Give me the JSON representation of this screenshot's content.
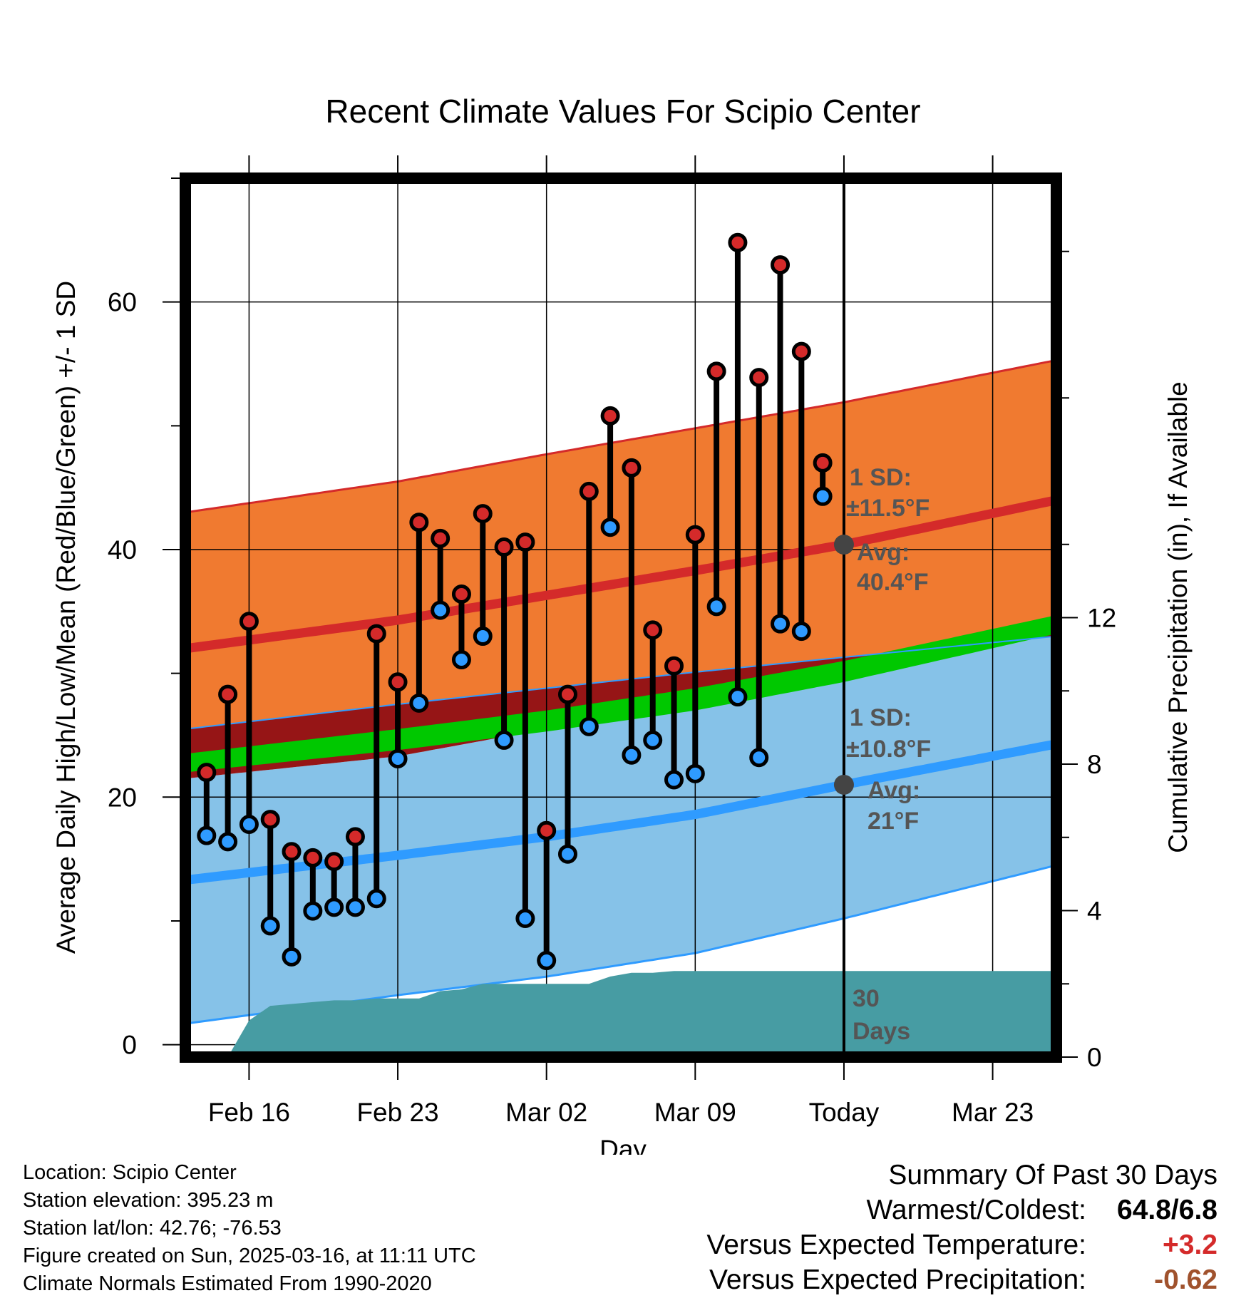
{
  "colors": {
    "high": "#d42a2a",
    "low": "#2f9bff",
    "band_upper": "#f07a30",
    "band_lower": "#86c2e8",
    "band_overlap": "#961516",
    "mean_band": "#00c800",
    "precip": "#479ca3",
    "annotation": "#555555",
    "warm_delta": "#d42a2a",
    "precip_delta": "#a0522d"
  },
  "chart_data": {
    "type": "line",
    "title": "Recent Climate Values For Scipio Center",
    "xlabel": "Day",
    "ylabel": "Average Daily High/Low/Mean (Red/Blue/Green) +/- 1 SD",
    "ylabel_right": "Cumulative Precipitation (in), If Available",
    "ylim": [
      -1,
      70
    ],
    "ylim_right": [
      0,
      24
    ],
    "xlim": [
      "2025-02-13",
      "2025-03-26"
    ],
    "x_ticks": [
      {
        "date": "2025-02-16",
        "label": "Feb 16"
      },
      {
        "date": "2025-02-23",
        "label": "Feb 23"
      },
      {
        "date": "2025-03-02",
        "label": "Mar 02"
      },
      {
        "date": "2025-03-09",
        "label": "Mar 09"
      },
      {
        "date": "2025-03-16",
        "label": "Today"
      },
      {
        "date": "2025-03-23",
        "label": "Mar 23"
      }
    ],
    "y_ticks": [
      "0",
      "20",
      "40",
      "60"
    ],
    "y_ticks_right": [
      "0",
      "4",
      "8",
      "12"
    ],
    "grid": true,
    "today": "2025-03-16",
    "days_label": [
      "30",
      "Days"
    ],
    "normals": {
      "x": [
        "2025-02-13",
        "2025-02-23",
        "2025-03-02",
        "2025-03-09",
        "2025-03-16",
        "2025-03-26"
      ],
      "high_mean": [
        32.0,
        34.3,
        36.3,
        38.3,
        40.4,
        44.0
      ],
      "high_upper": [
        43.0,
        45.5,
        47.7,
        49.8,
        51.9,
        55.3
      ],
      "high_lower": [
        25.5,
        27.5,
        28.8,
        30.1,
        31.3,
        33.0
      ],
      "low_mean": [
        13.3,
        15.3,
        16.8,
        18.6,
        21.0,
        24.3
      ],
      "low_upper": [
        21.5,
        23.3,
        25.5,
        27.7,
        29.8,
        33.3
      ],
      "low_lower": [
        1.7,
        4.0,
        5.5,
        7.4,
        10.2,
        14.5
      ],
      "avg_mean_upper": [
        23.5,
        25.5,
        27.0,
        28.8,
        31.0,
        34.7
      ],
      "avg_mean_lower": [
        22.0,
        23.8,
        25.3,
        27.0,
        29.3,
        33.2
      ]
    },
    "high_sd": {
      "label": "1 SD:",
      "value": "±11.5°F",
      "avg_label": "Avg:",
      "avg_value": "40.4°F",
      "avg": 40.4
    },
    "low_sd": {
      "label": "1 SD:",
      "value": "±10.8°F",
      "avg_label": "Avg:",
      "avg_value": "21°F",
      "avg": 21
    },
    "observations": {
      "x": [
        "2025-02-14",
        "2025-02-15",
        "2025-02-16",
        "2025-02-17",
        "2025-02-18",
        "2025-02-19",
        "2025-02-20",
        "2025-02-21",
        "2025-02-22",
        "2025-02-23",
        "2025-02-24",
        "2025-02-25",
        "2025-02-26",
        "2025-02-27",
        "2025-02-28",
        "2025-03-01",
        "2025-03-02",
        "2025-03-03",
        "2025-03-04",
        "2025-03-05",
        "2025-03-06",
        "2025-03-07",
        "2025-03-08",
        "2025-03-09",
        "2025-03-10",
        "2025-03-11",
        "2025-03-12",
        "2025-03-13",
        "2025-03-14",
        "2025-03-15"
      ],
      "high": [
        22.0,
        28.3,
        34.2,
        18.2,
        15.6,
        15.1,
        14.8,
        16.8,
        33.2,
        29.3,
        42.2,
        40.9,
        36.4,
        42.9,
        40.2,
        40.6,
        17.3,
        28.3,
        44.7,
        50.8,
        46.6,
        33.5,
        30.6,
        41.2,
        54.4,
        64.8,
        53.9,
        63.0,
        56.0,
        47.0
      ],
      "low": [
        16.9,
        16.4,
        17.8,
        9.6,
        7.1,
        10.8,
        11.1,
        11.1,
        11.8,
        23.1,
        27.6,
        35.1,
        31.1,
        33.0,
        24.6,
        10.2,
        6.8,
        15.4,
        25.7,
        41.8,
        23.4,
        24.6,
        21.4,
        21.9,
        35.4,
        28.1,
        23.2,
        34.0,
        33.4,
        44.3
      ]
    },
    "precip_cumulative": {
      "x": [
        "2025-02-14",
        "2025-02-15",
        "2025-02-16",
        "2025-02-17",
        "2025-02-18",
        "2025-02-19",
        "2025-02-20",
        "2025-02-21",
        "2025-02-22",
        "2025-02-23",
        "2025-02-24",
        "2025-02-25",
        "2025-02-26",
        "2025-02-27",
        "2025-02-28",
        "2025-03-01",
        "2025-03-02",
        "2025-03-03",
        "2025-03-04",
        "2025-03-05",
        "2025-03-06",
        "2025-03-07",
        "2025-03-08",
        "2025-03-16",
        "2025-03-26"
      ],
      "values": [
        0.0,
        0.0,
        1.0,
        1.4,
        1.45,
        1.5,
        1.55,
        1.55,
        1.6,
        1.6,
        1.6,
        1.8,
        1.85,
        2.0,
        2.0,
        2.0,
        2.0,
        2.0,
        2.0,
        2.2,
        2.3,
        2.3,
        2.35,
        2.35,
        2.35
      ]
    }
  },
  "footer": {
    "lines": [
      "Location: Scipio Center",
      "Station elevation: 395.23 m",
      "Station lat/lon: 42.76; -76.53",
      "Figure created on Sun, 2025-03-16, at 11:11 UTC",
      "Climate Normals Estimated From 1990-2020"
    ]
  },
  "summary": {
    "title": "Summary Of Past 30 Days",
    "rows": [
      {
        "label": "Warmest/Coldest:",
        "value": "64.8/6.8"
      },
      {
        "label": "Versus Expected Temperature:",
        "value": "+3.2"
      },
      {
        "label": "Versus Expected Precipitation:",
        "value": "-0.62"
      }
    ]
  }
}
